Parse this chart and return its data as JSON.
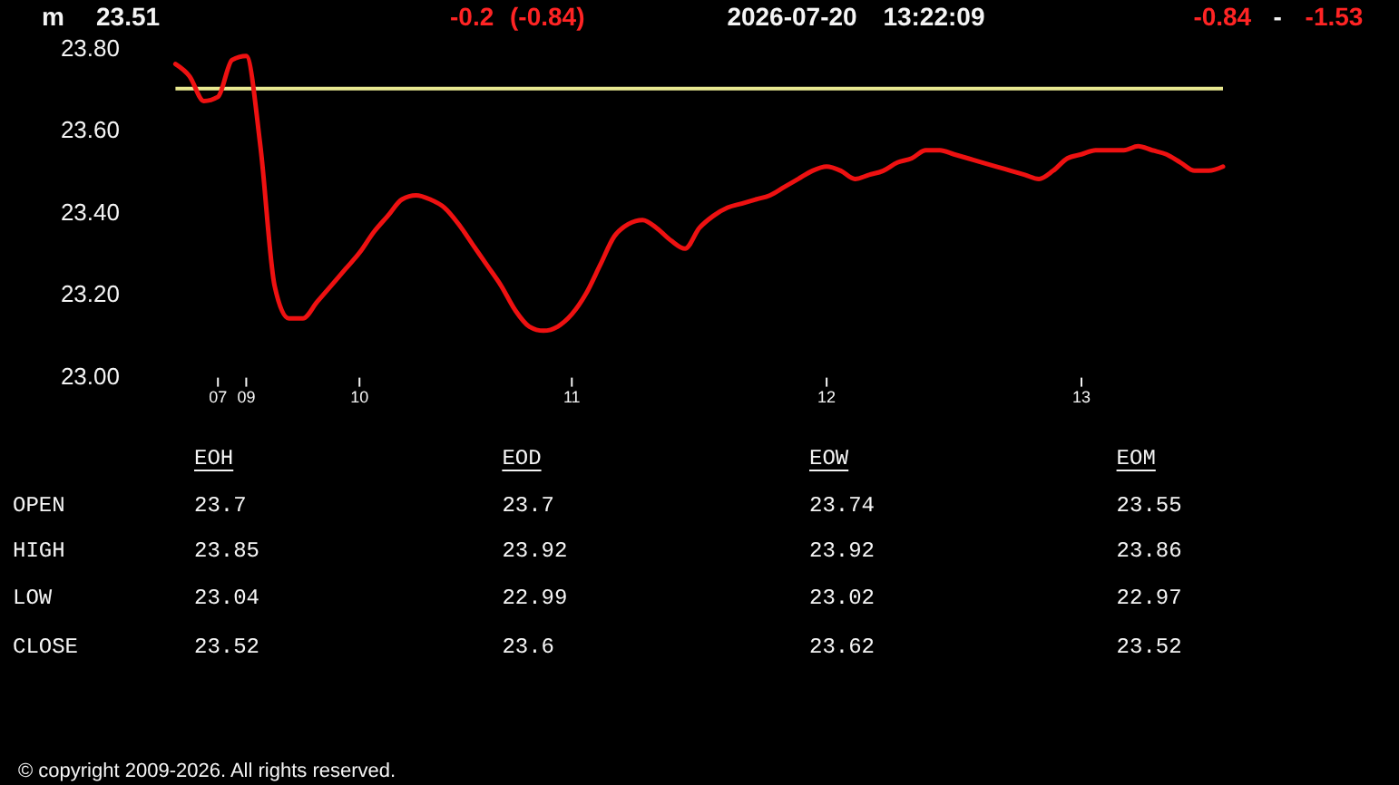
{
  "chart_data": {
    "type": "line",
    "title": "m",
    "categories": [
      null,
      null,
      null,
      "07",
      null,
      "09",
      null,
      null,
      null,
      null,
      null,
      null,
      null,
      "10",
      null,
      null,
      null,
      null,
      null,
      null,
      null,
      null,
      null,
      null,
      null,
      null,
      null,
      null,
      "11",
      null,
      null,
      null,
      null,
      null,
      null,
      null,
      null,
      null,
      null,
      null,
      null,
      null,
      null,
      null,
      null,
      null,
      "12",
      null,
      null,
      null,
      null,
      null,
      null,
      null,
      null,
      null,
      null,
      null,
      null,
      null,
      null,
      null,
      null,
      null,
      "13",
      null,
      null,
      null,
      null,
      null,
      null,
      null,
      null,
      null,
      null
    ],
    "values": [
      23.76,
      23.73,
      23.67,
      23.68,
      23.77,
      23.78,
      23.56,
      23.22,
      23.14,
      23.14,
      23.18,
      23.22,
      23.26,
      23.3,
      23.35,
      23.39,
      23.43,
      23.44,
      23.43,
      23.41,
      23.37,
      23.32,
      23.27,
      23.22,
      23.16,
      23.12,
      23.11,
      23.12,
      23.15,
      23.2,
      23.27,
      23.34,
      23.37,
      23.38,
      23.36,
      23.33,
      23.31,
      23.36,
      23.39,
      23.41,
      23.42,
      23.43,
      23.44,
      23.46,
      23.48,
      23.5,
      23.51,
      23.5,
      23.48,
      23.49,
      23.5,
      23.52,
      23.53,
      23.55,
      23.55,
      23.54,
      23.53,
      23.52,
      23.51,
      23.5,
      23.49,
      23.48,
      23.5,
      23.53,
      23.54,
      23.55,
      23.55,
      23.55,
      23.56,
      23.55,
      23.54,
      23.52,
      23.5,
      23.5,
      23.51
    ],
    "color": "#ee1111",
    "marker": "none",
    "line_style": "solid",
    "ylim": [
      23.0,
      23.8
    ],
    "yticks": [
      {
        "value": 23.0,
        "label": "23.00"
      },
      {
        "value": 23.2,
        "label": "23.20"
      },
      {
        "value": 23.4,
        "label": "23.40"
      },
      {
        "value": 23.6,
        "label": "23.60"
      },
      {
        "value": 23.8,
        "label": "23.80"
      }
    ],
    "ref_lines": [
      {
        "axis": "y",
        "value": 23.7,
        "color": "#e8e890"
      }
    ],
    "annotations": [
      "23.51",
      "-0.2",
      "(-0.84)",
      "2026-07-20",
      "13:22:09",
      "-0.84",
      "-",
      "-1.53",
      "EOH",
      "EOD",
      "EOW",
      "EOM",
      "OPEN",
      "HIGH",
      "LOW",
      "CLOSE",
      "23.7",
      "23.7",
      "23.74",
      "23.55",
      "23.85",
      "23.92",
      "23.92",
      "23.86",
      "23.04",
      "22.99",
      "23.02",
      "22.97",
      "23.52",
      "23.6",
      "23.62",
      "23.52",
      "© copyright 2009-2026. All rights reserved."
    ]
  }
}
